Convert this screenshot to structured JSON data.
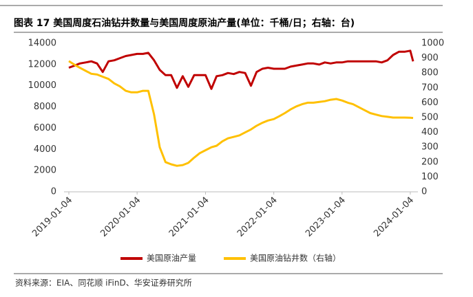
{
  "chart_data": {
    "type": "line",
    "title": "图表 17 美国周度石油钻井数量与美国周度原油产量(单位：千桶/日；右轴：台)",
    "source": "资料来源：EIA、同花顺 iFinD、华安证券研究所",
    "x": [
      "2019-01-04",
      "2019-02-04",
      "2019-03-04",
      "2019-04-04",
      "2019-05-04",
      "2019-06-04",
      "2019-07-04",
      "2019-08-04",
      "2019-09-04",
      "2019-10-04",
      "2019-11-04",
      "2019-12-04",
      "2020-01-04",
      "2020-02-04",
      "2020-03-04",
      "2020-04-04",
      "2020-05-04",
      "2020-06-04",
      "2020-07-04",
      "2020-08-04",
      "2020-09-04",
      "2020-10-04",
      "2020-11-04",
      "2020-12-04",
      "2021-01-04",
      "2021-02-04",
      "2021-03-04",
      "2021-04-04",
      "2021-05-04",
      "2021-06-04",
      "2021-07-04",
      "2021-08-04",
      "2021-09-04",
      "2021-10-04",
      "2021-11-04",
      "2021-12-04",
      "2022-01-04",
      "2022-02-04",
      "2022-03-04",
      "2022-04-04",
      "2022-05-04",
      "2022-06-04",
      "2022-07-04",
      "2022-08-04",
      "2022-09-04",
      "2022-10-04",
      "2022-11-04",
      "2022-12-04",
      "2023-01-04",
      "2023-02-04",
      "2023-03-04",
      "2023-04-04",
      "2023-05-04",
      "2023-06-04",
      "2023-07-04",
      "2023-08-04",
      "2023-09-04",
      "2023-10-04",
      "2023-11-04",
      "2023-12-04",
      "2024-01-04",
      "2024-01-19"
    ],
    "series": [
      {
        "name": "美国原油产量",
        "color": "#c00000",
        "values": [
          11700,
          11900,
          12100,
          12200,
          12300,
          12100,
          11300,
          12300,
          12400,
          12600,
          12800,
          12900,
          13000,
          13000,
          13100,
          12400,
          11500,
          11000,
          11000,
          9800,
          10900,
          9900,
          11000,
          11000,
          11000,
          9700,
          10900,
          11000,
          11200,
          11100,
          11300,
          11200,
          10000,
          11300,
          11600,
          11700,
          11600,
          11600,
          11600,
          11800,
          11900,
          12000,
          12100,
          12100,
          12000,
          12200,
          12100,
          12200,
          12200,
          12300,
          12300,
          12300,
          12300,
          12300,
          12300,
          12200,
          12400,
          12900,
          13200,
          13200,
          13300,
          12300
        ]
      },
      {
        "name": "美国原油钻井数（右轴）",
        "color": "#ffc000",
        "axis": "y2",
        "values": [
          880,
          855,
          835,
          815,
          795,
          790,
          775,
          760,
          730,
          710,
          680,
          670,
          670,
          680,
          680,
          520,
          300,
          200,
          185,
          175,
          180,
          195,
          230,
          260,
          280,
          300,
          310,
          340,
          360,
          370,
          380,
          400,
          420,
          445,
          465,
          480,
          490,
          510,
          530,
          555,
          575,
          590,
          600,
          600,
          605,
          610,
          620,
          625,
          615,
          600,
          590,
          570,
          550,
          530,
          520,
          510,
          505,
          500,
          500,
          500,
          499,
          497
        ]
      }
    ],
    "xlim": [
      "2019-01-04",
      "2024-01-19"
    ],
    "xticks": [
      "2019-01-04",
      "2020-01-04",
      "2021-01-04",
      "2022-01-04",
      "2023-01-04",
      "2024-01-04"
    ],
    "ylim": [
      0,
      14000
    ],
    "yticks": [
      0,
      2000,
      4000,
      6000,
      8000,
      10000,
      12000,
      14000
    ],
    "y2lim": [
      0,
      1000
    ],
    "y2ticks": [
      0,
      100,
      200,
      300,
      400,
      500,
      600,
      700,
      800,
      900,
      1000
    ]
  }
}
